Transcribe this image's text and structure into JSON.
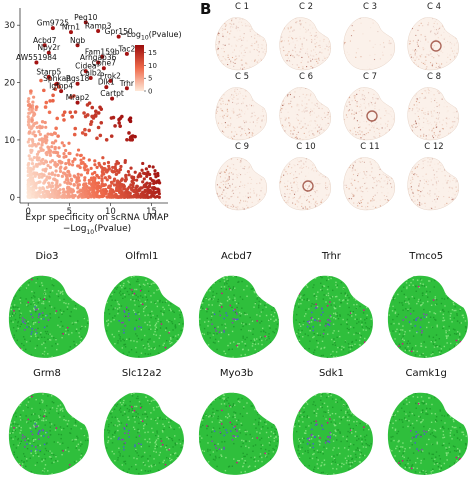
{
  "panel_b_letter": "B",
  "chart_data": {
    "type": "scatter",
    "title": "",
    "xlabel": "Expr specificity on scRNA UMAP",
    "xlabel2_prefix": "−Log",
    "xlabel2_sub": "10",
    "xlabel2_suffix": "(Pvalue)",
    "ylabel": "",
    "xlim": [
      -1,
      17
    ],
    "ylim": [
      -1,
      33
    ],
    "xticks": [
      "0",
      "5",
      "10",
      "15"
    ],
    "yticks": [
      "0",
      "10",
      "20",
      "30"
    ],
    "legend": {
      "title_prefix": "−Log",
      "title_sub": "10",
      "title_suffix": "(Pvalue)",
      "ticks": [
        "15",
        "10",
        "5",
        "0"
      ],
      "range": [
        0,
        18
      ]
    },
    "labeled_points": [
      {
        "name": "Peg10",
        "x": 7.0,
        "y": 30.5
      },
      {
        "name": "Gm9725",
        "x": 3.0,
        "y": 29.5
      },
      {
        "name": "Ramp3",
        "x": 8.5,
        "y": 29.0
      },
      {
        "name": "Nrn1",
        "x": 5.2,
        "y": 28.8
      },
      {
        "name": "Gpr150",
        "x": 11.0,
        "y": 28.0
      },
      {
        "name": "Acbd7",
        "x": 2.0,
        "y": 26.5
      },
      {
        "name": "Ngb",
        "x": 6.0,
        "y": 26.5
      },
      {
        "name": "Tac2",
        "x": 12.0,
        "y": 25.0
      },
      {
        "name": "Npy2r",
        "x": 2.5,
        "y": 25.2
      },
      {
        "name": "AW551984",
        "x": 1.0,
        "y": 23.5
      },
      {
        "name": "Fam159b",
        "x": 9.0,
        "y": 24.5
      },
      {
        "name": "Arhgap36",
        "x": 8.5,
        "y": 23.5
      },
      {
        "name": "Cpne7",
        "x": 9.2,
        "y": 22.5
      },
      {
        "name": "Cidea",
        "x": 7.0,
        "y": 22.0
      },
      {
        "name": "Calb2",
        "x": 7.6,
        "y": 20.8
      },
      {
        "name": "Starp5",
        "x": 2.5,
        "y": 21.0
      },
      {
        "name": "Prok2",
        "x": 10.0,
        "y": 20.3
      },
      {
        "name": "Sphkap",
        "x": 3.5,
        "y": 19.8
      },
      {
        "name": "Rgs18",
        "x": 6.0,
        "y": 19.8
      },
      {
        "name": "Dlk1",
        "x": 9.5,
        "y": 19.2
      },
      {
        "name": "Trhr",
        "x": 12.0,
        "y": 19.0
      },
      {
        "name": "Igfbp4",
        "x": 4.0,
        "y": 18.5
      },
      {
        "name": "Cartpt",
        "x": 10.2,
        "y": 17.2
      },
      {
        "name": "Mrap2",
        "x": 6.0,
        "y": 16.5
      }
    ]
  },
  "panel_b": {
    "clusters": [
      "C 1",
      "C 2",
      "C 3",
      "C 4",
      "C 5",
      "C 6",
      "C 7",
      "C 8",
      "C 9",
      "C 10",
      "C 11",
      "C 12"
    ]
  },
  "panel_c": {
    "genes_row1": [
      "Dio3",
      "Olfml1",
      "Acbd7",
      "Trhr",
      "Tmco5"
    ],
    "genes_row2": [
      "Grm8",
      "Slc12a2",
      "Myo3b",
      "Sdk1",
      "Camk1g"
    ],
    "colors": {
      "base": "#2fbf3c",
      "mid": "#4a5bd6",
      "high": "#e0008a"
    }
  },
  "colors": {
    "dot_dark": "#8b0a0a",
    "dot_light": "#f7c4a5",
    "cell_tint": "#c98a6a"
  }
}
